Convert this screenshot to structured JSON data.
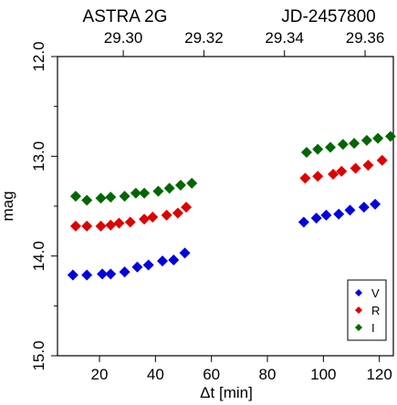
{
  "chart_data": {
    "type": "scatter",
    "title": "ASTRA 2G",
    "top_axis_title": "JD-2457800",
    "xlabel": "Δt [min]",
    "ylabel": "mag",
    "xlim": [
      5,
      125
    ],
    "ylim": [
      15.0,
      12.0
    ],
    "y_inverted": true,
    "x_ticks": [
      20,
      40,
      60,
      80,
      100,
      120
    ],
    "y_ticks": [
      12.0,
      13.0,
      14.0,
      15.0
    ],
    "y_minor_ticks": [
      12.5,
      13.5,
      14.5
    ],
    "top_ticks": [
      {
        "label": "29.30",
        "x": 28.5
      },
      {
        "label": "29.32",
        "x": 57.3
      },
      {
        "label": "29.34",
        "x": 86.1
      },
      {
        "label": "29.36",
        "x": 114.9
      }
    ],
    "grid": false,
    "legend_position": "bottom-right",
    "series": [
      {
        "name": "V",
        "color": "#0000dd",
        "x": [
          10.5,
          15.5,
          21,
          24,
          29,
          33.5,
          37.5,
          42.5,
          46.5,
          50.5,
          93,
          97.5,
          101,
          105.5,
          109.5,
          114.5,
          118.5
        ],
        "y": [
          14.19,
          14.19,
          14.18,
          14.18,
          14.16,
          14.11,
          14.09,
          14.05,
          14.04,
          13.97,
          13.66,
          13.62,
          13.59,
          13.58,
          13.54,
          13.51,
          13.48
        ]
      },
      {
        "name": "R",
        "color": "#dd0000",
        "x": [
          11.5,
          15.5,
          20.5,
          24,
          27,
          31,
          36,
          39,
          44,
          48,
          51,
          93.5,
          98,
          103.5,
          106.5,
          111.5,
          116,
          121
        ],
        "y": [
          13.7,
          13.7,
          13.7,
          13.69,
          13.67,
          13.66,
          13.63,
          13.61,
          13.59,
          13.57,
          13.51,
          13.22,
          13.2,
          13.18,
          13.15,
          13.12,
          13.09,
          13.04
        ]
      },
      {
        "name": "I",
        "color": "#006600",
        "x": [
          11.5,
          15.5,
          20.5,
          24,
          29,
          33,
          36,
          41,
          45,
          49,
          53,
          94,
          98,
          102.5,
          107,
          111,
          115.5,
          119.5,
          124
        ],
        "y": [
          13.4,
          13.44,
          13.42,
          13.41,
          13.4,
          13.37,
          13.37,
          13.35,
          13.32,
          13.29,
          13.27,
          12.96,
          12.93,
          12.91,
          12.88,
          12.87,
          12.84,
          12.82,
          12.8
        ]
      }
    ]
  }
}
